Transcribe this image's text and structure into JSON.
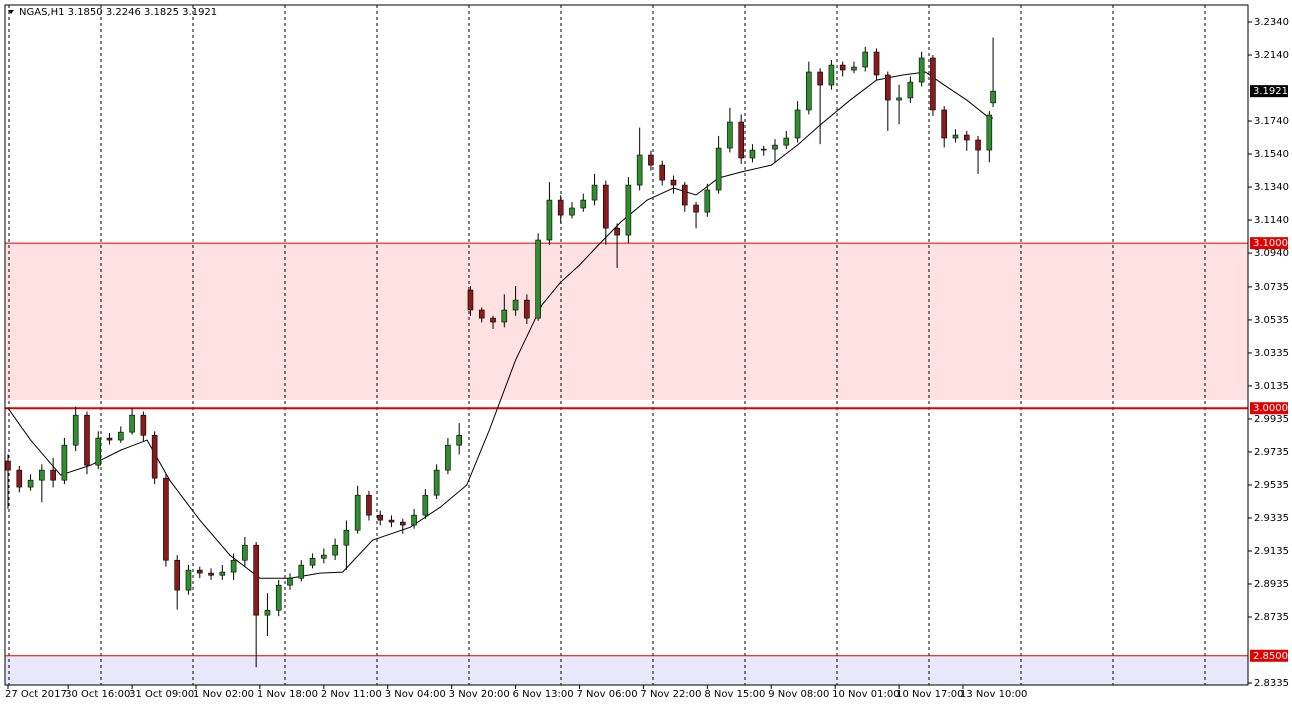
{
  "chart_data": {
    "type": "candlestick",
    "title": "NGAS,H1  3.1850 3.2246 3.1825 3.1921",
    "bull_color": "#2f8f2f",
    "bear_color": "#8b1a1a",
    "wick_color": "#000000",
    "xlim": [
      -0.8,
      329.8
    ],
    "ylim": [
      2.8323,
      3.2443
    ],
    "xticks": [
      {
        "value": 0,
        "label": "27 Oct 2017"
      },
      {
        "value": 16,
        "label": "30 Oct 16:00"
      },
      {
        "value": 33,
        "label": "31 Oct 09:00"
      },
      {
        "value": 50,
        "label": "1 Nov 02:00"
      },
      {
        "value": 67,
        "label": "1 Nov 18:00"
      },
      {
        "value": 84,
        "label": "2 Nov 11:00"
      },
      {
        "value": 101,
        "label": "3 Nov 04:00"
      },
      {
        "value": 118,
        "label": "3 Nov 20:00"
      },
      {
        "value": 135,
        "label": "6 Nov 13:00"
      },
      {
        "value": 152,
        "label": "7 Nov 06:00"
      },
      {
        "value": 169,
        "label": "7 Nov 22:00"
      },
      {
        "value": 186,
        "label": "8 Nov 15:00"
      },
      {
        "value": 203,
        "label": "9 Nov 08:00"
      },
      {
        "value": 220,
        "label": "10 Nov 01:00"
      },
      {
        "value": 237,
        "label": "10 Nov 17:00"
      },
      {
        "value": 254,
        "label": "13 Nov 10:00"
      }
    ],
    "yticks": [
      {
        "value": 3.234,
        "label": "3.2340"
      },
      {
        "value": 3.214,
        "label": "3.2140"
      },
      {
        "value": 3.174,
        "label": "3.1740"
      },
      {
        "value": 3.154,
        "label": "3.1540"
      },
      {
        "value": 3.134,
        "label": "3.1340"
      },
      {
        "value": 3.114,
        "label": "3.1140"
      },
      {
        "value": 3.094,
        "label": "3.0940"
      },
      {
        "value": 3.0735,
        "label": "3.0735"
      },
      {
        "value": 3.0535,
        "label": "3.0535"
      },
      {
        "value": 3.0335,
        "label": "3.0335"
      },
      {
        "value": 3.0135,
        "label": "3.0135"
      },
      {
        "value": 2.9935,
        "label": "2.9935"
      },
      {
        "value": 2.9735,
        "label": "2.9735"
      },
      {
        "value": 2.9535,
        "label": "2.9535"
      },
      {
        "value": 2.9335,
        "label": "2.9335"
      },
      {
        "value": 2.9135,
        "label": "2.9135"
      },
      {
        "value": 2.8935,
        "label": "2.8935"
      },
      {
        "value": 2.8735,
        "label": "2.8735"
      },
      {
        "value": 2.8335,
        "label": "2.8335"
      }
    ],
    "zones": [
      {
        "from": 3.005,
        "to": 3.1,
        "color": "#ffe1e1"
      },
      {
        "from": 2.8323,
        "to": 2.85,
        "color": "#e8e8fa"
      }
    ],
    "levels": [
      {
        "value": 3.1,
        "label": "3.1000",
        "color": "#e00000",
        "width": 1
      },
      {
        "value": 3.0,
        "label": "3.0000",
        "color": "#e00000",
        "width": 2
      },
      {
        "value": 2.85,
        "label": "2.8500",
        "color": "#e00000",
        "width": 1
      }
    ],
    "current_price": {
      "value": 3.1921,
      "label": "3.1921"
    },
    "x": [
      0,
      3,
      6,
      9,
      12,
      15,
      18,
      21,
      24,
      27,
      30,
      33,
      36,
      39,
      42,
      45,
      48,
      51,
      54,
      57,
      60,
      63,
      66,
      69,
      72,
      75,
      78,
      81,
      84,
      87,
      90,
      93,
      96,
      99,
      102,
      105,
      108,
      111,
      114,
      117,
      120,
      123,
      126,
      129,
      132,
      135,
      138,
      141,
      144,
      147,
      150,
      153,
      156,
      159,
      162,
      165,
      168,
      171,
      174,
      177,
      180,
      183,
      186,
      189,
      192,
      195,
      198,
      201,
      204,
      207,
      210,
      213,
      216,
      219,
      222,
      225,
      228,
      231,
      234,
      237,
      240,
      243,
      246,
      249,
      252,
      255,
      258,
      261,
      262
    ],
    "open": [
      2.968,
      2.9625,
      2.9522,
      2.9564,
      2.9625,
      2.9564,
      2.9776,
      2.9958,
      2.9655,
      2.9819,
      2.9807,
      2.9855,
      2.9958,
      2.9836,
      2.9576,
      2.9079,
      2.8898,
      2.9019,
      2.9001,
      2.8988,
      2.9007,
      2.9079,
      2.917,
      2.8746,
      2.8776,
      2.8928,
      2.897,
      2.9049,
      2.9091,
      2.911,
      2.917,
      2.9261,
      2.9473,
      2.9352,
      2.9322,
      2.931,
      2.9292,
      2.9352,
      2.9473,
      2.9625,
      2.9776,
      3.0716,
      3.0595,
      3.0546,
      3.0522,
      3.0595,
      3.0655,
      3.0546,
      3.1019,
      3.1261,
      3.117,
      3.1213,
      3.1261,
      3.1352,
      3.1091,
      3.1049,
      3.1352,
      3.1534,
      3.1473,
      3.1382,
      3.1352,
      3.1231,
      3.1188,
      3.1322,
      3.1576,
      3.1734,
      3.1516,
      3.1564,
      3.157,
      3.1594,
      3.1637,
      3.1807,
      3.2037,
      3.1958,
      3.2079,
      3.2049,
      3.2067,
      3.2158,
      3.2019,
      3.1867,
      3.188,
      3.1976,
      3.2122,
      3.1807,
      3.1637,
      3.1655,
      3.1625,
      3.1564,
      3.185
    ],
    "high": [
      2.972,
      2.965,
      2.96,
      2.966,
      2.97,
      2.982,
      3.001,
      2.998,
      2.986,
      2.985,
      2.989,
      3.0,
      2.998,
      2.986,
      2.96,
      2.911,
      2.905,
      2.904,
      2.903,
      2.905,
      2.912,
      2.922,
      2.919,
      2.888,
      2.896,
      2.9,
      2.908,
      2.912,
      2.915,
      2.921,
      2.932,
      2.953,
      2.95,
      2.938,
      2.935,
      2.933,
      2.939,
      2.951,
      2.966,
      2.982,
      2.991,
      3.074,
      3.061,
      3.056,
      3.069,
      3.074,
      3.069,
      3.106,
      3.137,
      3.129,
      3.125,
      3.13,
      3.142,
      3.138,
      3.112,
      3.14,
      3.17,
      3.156,
      3.15,
      3.141,
      3.137,
      3.125,
      3.136,
      3.165,
      3.182,
      3.178,
      3.16,
      3.159,
      3.163,
      3.168,
      3.186,
      3.21,
      3.206,
      3.211,
      3.21,
      3.21,
      3.219,
      3.218,
      3.204,
      3.196,
      3.201,
      3.216,
      3.214,
      3.183,
      3.169,
      3.168,
      3.165,
      3.18,
      3.2246
    ],
    "low": [
      2.939,
      2.949,
      2.95,
      2.943,
      2.952,
      2.954,
      2.974,
      2.96,
      2.963,
      2.978,
      2.979,
      2.984,
      2.98,
      2.954,
      2.904,
      2.878,
      2.887,
      2.897,
      2.896,
      2.896,
      2.896,
      2.904,
      2.843,
      2.862,
      2.874,
      2.89,
      2.895,
      2.903,
      2.906,
      2.908,
      2.902,
      2.924,
      2.932,
      2.929,
      2.928,
      2.924,
      2.927,
      2.933,
      2.945,
      2.96,
      2.972,
      3.056,
      3.052,
      3.048,
      3.049,
      3.056,
      3.051,
      3.053,
      3.099,
      3.112,
      3.115,
      3.119,
      3.123,
      3.099,
      3.085,
      3.1,
      3.132,
      3.144,
      3.135,
      3.13,
      3.119,
      3.109,
      3.116,
      3.13,
      3.155,
      3.148,
      3.149,
      3.153,
      3.149,
      3.157,
      3.161,
      3.178,
      3.16,
      3.193,
      3.201,
      3.203,
      3.204,
      3.199,
      3.168,
      3.172,
      3.185,
      3.195,
      3.177,
      3.158,
      3.161,
      3.156,
      3.142,
      3.149,
      3.1825
    ],
    "close": [
      2.9625,
      2.9522,
      2.9564,
      2.9625,
      2.9564,
      2.9776,
      2.9958,
      2.9655,
      2.9819,
      2.9807,
      2.9855,
      2.9958,
      2.9836,
      2.9576,
      2.9079,
      2.8898,
      2.9019,
      2.9001,
      2.8988,
      2.9007,
      2.9079,
      2.917,
      2.8746,
      2.8776,
      2.8928,
      2.897,
      2.9049,
      2.9091,
      2.911,
      2.917,
      2.9261,
      2.9473,
      2.9352,
      2.9322,
      2.931,
      2.9292,
      2.9352,
      2.9473,
      2.9625,
      2.9776,
      2.9836,
      3.0595,
      3.0546,
      3.0522,
      3.0595,
      3.0655,
      3.0546,
      3.1019,
      3.1261,
      3.117,
      3.1213,
      3.1261,
      3.1352,
      3.1091,
      3.1049,
      3.1352,
      3.1534,
      3.1473,
      3.1382,
      3.1352,
      3.1231,
      3.1188,
      3.1322,
      3.1576,
      3.1734,
      3.1516,
      3.1564,
      3.157,
      3.1594,
      3.1637,
      3.1807,
      3.2037,
      3.1958,
      3.2079,
      3.2049,
      3.2067,
      3.2158,
      3.2019,
      3.1867,
      3.188,
      3.1976,
      3.2122,
      3.1807,
      3.1637,
      3.1655,
      3.1625,
      3.1564,
      3.1776,
      3.1921
    ],
    "moving_average": {
      "color": "#000000",
      "x": [
        0,
        6,
        14,
        22,
        30,
        37,
        43,
        51,
        59,
        67,
        75,
        83,
        89,
        97,
        107,
        115,
        122,
        128,
        135,
        142,
        147,
        152,
        157,
        163,
        170,
        177,
        183,
        189,
        195,
        203,
        210,
        216,
        224,
        231,
        238,
        244,
        249,
        255,
        261,
        262
      ],
      "values": [
        3.0,
        2.9807,
        2.9595,
        2.9655,
        2.9746,
        2.9807,
        2.9564,
        2.9322,
        2.911,
        2.897,
        2.897,
        2.9001,
        2.9007,
        2.9201,
        2.9279,
        2.9401,
        2.9534,
        2.9867,
        3.0292,
        3.0625,
        3.0764,
        3.0867,
        3.0988,
        3.1128,
        3.1261,
        3.1334,
        3.1292,
        3.1395,
        3.1431,
        3.1473,
        3.1595,
        3.1716,
        3.1867,
        3.1988,
        3.2019,
        3.2037,
        3.1958,
        3.1867,
        3.1758,
        3.1758
      ]
    }
  }
}
